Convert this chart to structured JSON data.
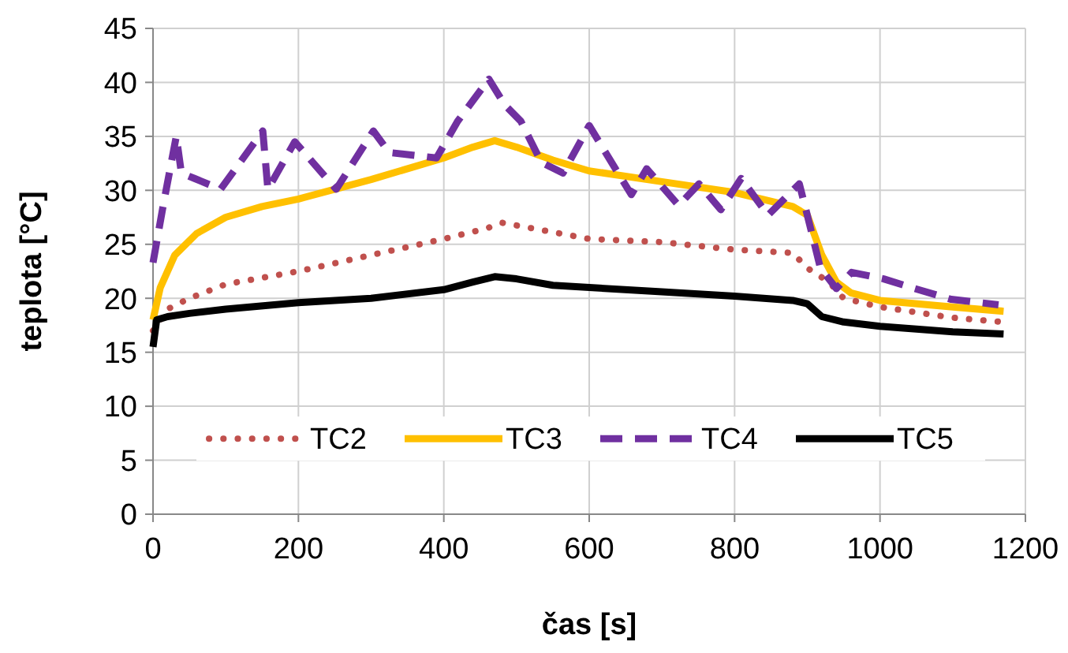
{
  "chart_data": {
    "type": "line",
    "xlabel": "čas [s]",
    "ylabel": "teplota [°C]",
    "xlim": [
      0,
      1200
    ],
    "xticks": [
      0,
      200,
      400,
      600,
      800,
      1000,
      1200
    ],
    "ylim": [
      0,
      45
    ],
    "yticks": [
      0,
      5,
      10,
      15,
      20,
      25,
      30,
      35,
      40,
      45
    ],
    "grid": true,
    "legend": "bottom",
    "series": [
      {
        "name": "TC2",
        "color": "#c0504d",
        "line_style": "dotted",
        "x": [
          0,
          20,
          50,
          100,
          200,
          300,
          400,
          460,
          480,
          520,
          600,
          700,
          800,
          880,
          900,
          930,
          950,
          1000,
          1050,
          1100,
          1170
        ],
        "values": [
          17,
          19,
          20,
          21.3,
          22.5,
          24,
          25.5,
          26.5,
          27,
          26.5,
          25.5,
          25.2,
          24.5,
          24.2,
          22.8,
          21.5,
          20,
          19.2,
          18.7,
          18.2,
          17.8
        ]
      },
      {
        "name": "TC3",
        "color": "#ffc000",
        "line_style": "solid",
        "x": [
          0,
          10,
          30,
          60,
          100,
          150,
          200,
          300,
          400,
          440,
          470,
          500,
          550,
          600,
          700,
          800,
          880,
          900,
          920,
          940,
          960,
          1000,
          1100,
          1170
        ],
        "values": [
          18,
          21,
          24,
          26,
          27.5,
          28.5,
          29.2,
          31,
          33,
          34,
          34.6,
          34,
          32.8,
          31.8,
          30.8,
          29.8,
          28.5,
          27.7,
          24,
          21.5,
          20.5,
          19.8,
          19.2,
          18.8
        ]
      },
      {
        "name": "TC4",
        "color": "#7030a0",
        "line_style": "dashed",
        "x": [
          0,
          14,
          32,
          39,
          57,
          93,
          151,
          158,
          195,
          252,
          303,
          325,
          390,
          419,
          462,
          484,
          506,
          534,
          564,
          600,
          636,
          658,
          679,
          723,
          751,
          781,
          809,
          846,
          889,
          900,
          918,
          940,
          961,
          1005,
          1048,
          1098,
          1163
        ],
        "values": [
          23.3,
          28.6,
          35,
          31.6,
          31.1,
          30.1,
          35.5,
          30.1,
          34.5,
          30.1,
          35.5,
          33.5,
          33,
          36.4,
          40.3,
          37.9,
          36.4,
          32.6,
          31.6,
          36,
          32,
          29.6,
          32,
          28.6,
          30.6,
          28.2,
          31.1,
          27.7,
          30.6,
          27.7,
          22.8,
          20.9,
          22.4,
          21.8,
          20.9,
          19.9,
          19.4
        ]
      },
      {
        "name": "TC5",
        "color": "#000000",
        "line_style": "solid",
        "x": [
          0,
          5,
          20,
          50,
          100,
          200,
          300,
          400,
          440,
          470,
          500,
          550,
          600,
          700,
          800,
          880,
          900,
          920,
          950,
          1000,
          1100,
          1170
        ],
        "values": [
          15.5,
          18,
          18.3,
          18.6,
          19,
          19.6,
          20,
          20.8,
          21.5,
          22,
          21.8,
          21.2,
          21,
          20.6,
          20.2,
          19.8,
          19.5,
          18.3,
          17.8,
          17.4,
          16.9,
          16.7
        ]
      }
    ]
  }
}
